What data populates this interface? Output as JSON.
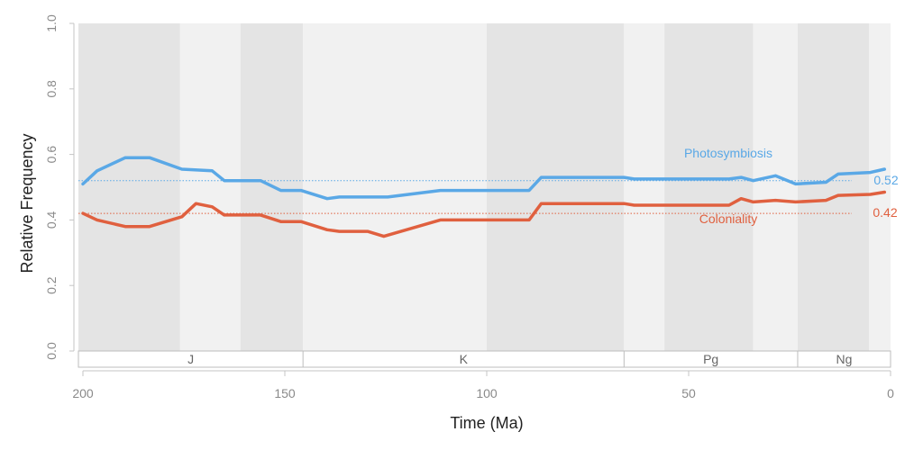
{
  "chart_data": {
    "type": "line",
    "xlabel": "Time (Ma)",
    "ylabel": "Relative Frequency",
    "xlim": [
      201.3,
      0
    ],
    "ylim": [
      0,
      1
    ],
    "x_ticks": [
      200,
      150,
      100,
      50,
      0
    ],
    "y_ticks": [
      "0.0",
      "0.2",
      "0.4",
      "0.6",
      "0.8",
      "1.0"
    ],
    "stage_bands": [
      {
        "start": 201.3,
        "end": 176,
        "shade": "dark"
      },
      {
        "start": 176,
        "end": 161,
        "shade": "light"
      },
      {
        "start": 161,
        "end": 145.5,
        "shade": "dark"
      },
      {
        "start": 145.5,
        "end": 100,
        "shade": "light"
      },
      {
        "start": 100,
        "end": 66,
        "shade": "dark"
      },
      {
        "start": 66,
        "end": 56,
        "shade": "light"
      },
      {
        "start": 56,
        "end": 34,
        "shade": "dark"
      },
      {
        "start": 34,
        "end": 23,
        "shade": "light"
      },
      {
        "start": 23,
        "end": 5.3,
        "shade": "dark"
      },
      {
        "start": 5.3,
        "end": 0,
        "shade": "light"
      }
    ],
    "periods": [
      {
        "label": "J",
        "start": 201.3,
        "end": 145.5
      },
      {
        "label": "K",
        "start": 145.5,
        "end": 66
      },
      {
        "label": "Pg",
        "start": 66,
        "end": 23
      },
      {
        "label": "Ng",
        "start": 23,
        "end": 0
      }
    ],
    "series": [
      {
        "name": "Photosymbiosis",
        "color": "#5aa8e6",
        "mean": 0.52,
        "mean_label": "0.52",
        "x": [
          200,
          196.5,
          189.5,
          183.5,
          175.5,
          168,
          165,
          156,
          151,
          146,
          139.5,
          136.5,
          127.5,
          124.5,
          111.5,
          89.5,
          86.5,
          66,
          63.5,
          40,
          37,
          34,
          28.5,
          23.5,
          16,
          13,
          5,
          1.5
        ],
        "y": [
          0.51,
          0.55,
          0.59,
          0.59,
          0.555,
          0.55,
          0.52,
          0.52,
          0.49,
          0.49,
          0.465,
          0.47,
          0.47,
          0.47,
          0.49,
          0.49,
          0.53,
          0.53,
          0.525,
          0.525,
          0.53,
          0.52,
          0.535,
          0.51,
          0.515,
          0.54,
          0.545,
          0.555
        ]
      },
      {
        "name": "Coloniality",
        "color": "#e0603f",
        "mean": 0.42,
        "mean_label": "0.42",
        "x": [
          200,
          196.5,
          189.5,
          183.5,
          175.5,
          172,
          168,
          165,
          156,
          151,
          146,
          139.5,
          136.5,
          129.5,
          125.5,
          111.5,
          89.5,
          86.5,
          66,
          63.5,
          40,
          37,
          34,
          28.5,
          23.5,
          16,
          13,
          5,
          1.5
        ],
        "y": [
          0.42,
          0.4,
          0.38,
          0.38,
          0.41,
          0.45,
          0.44,
          0.415,
          0.415,
          0.395,
          0.395,
          0.37,
          0.365,
          0.365,
          0.35,
          0.4,
          0.4,
          0.45,
          0.45,
          0.445,
          0.445,
          0.465,
          0.455,
          0.46,
          0.455,
          0.46,
          0.475,
          0.478,
          0.485
        ]
      }
    ]
  }
}
